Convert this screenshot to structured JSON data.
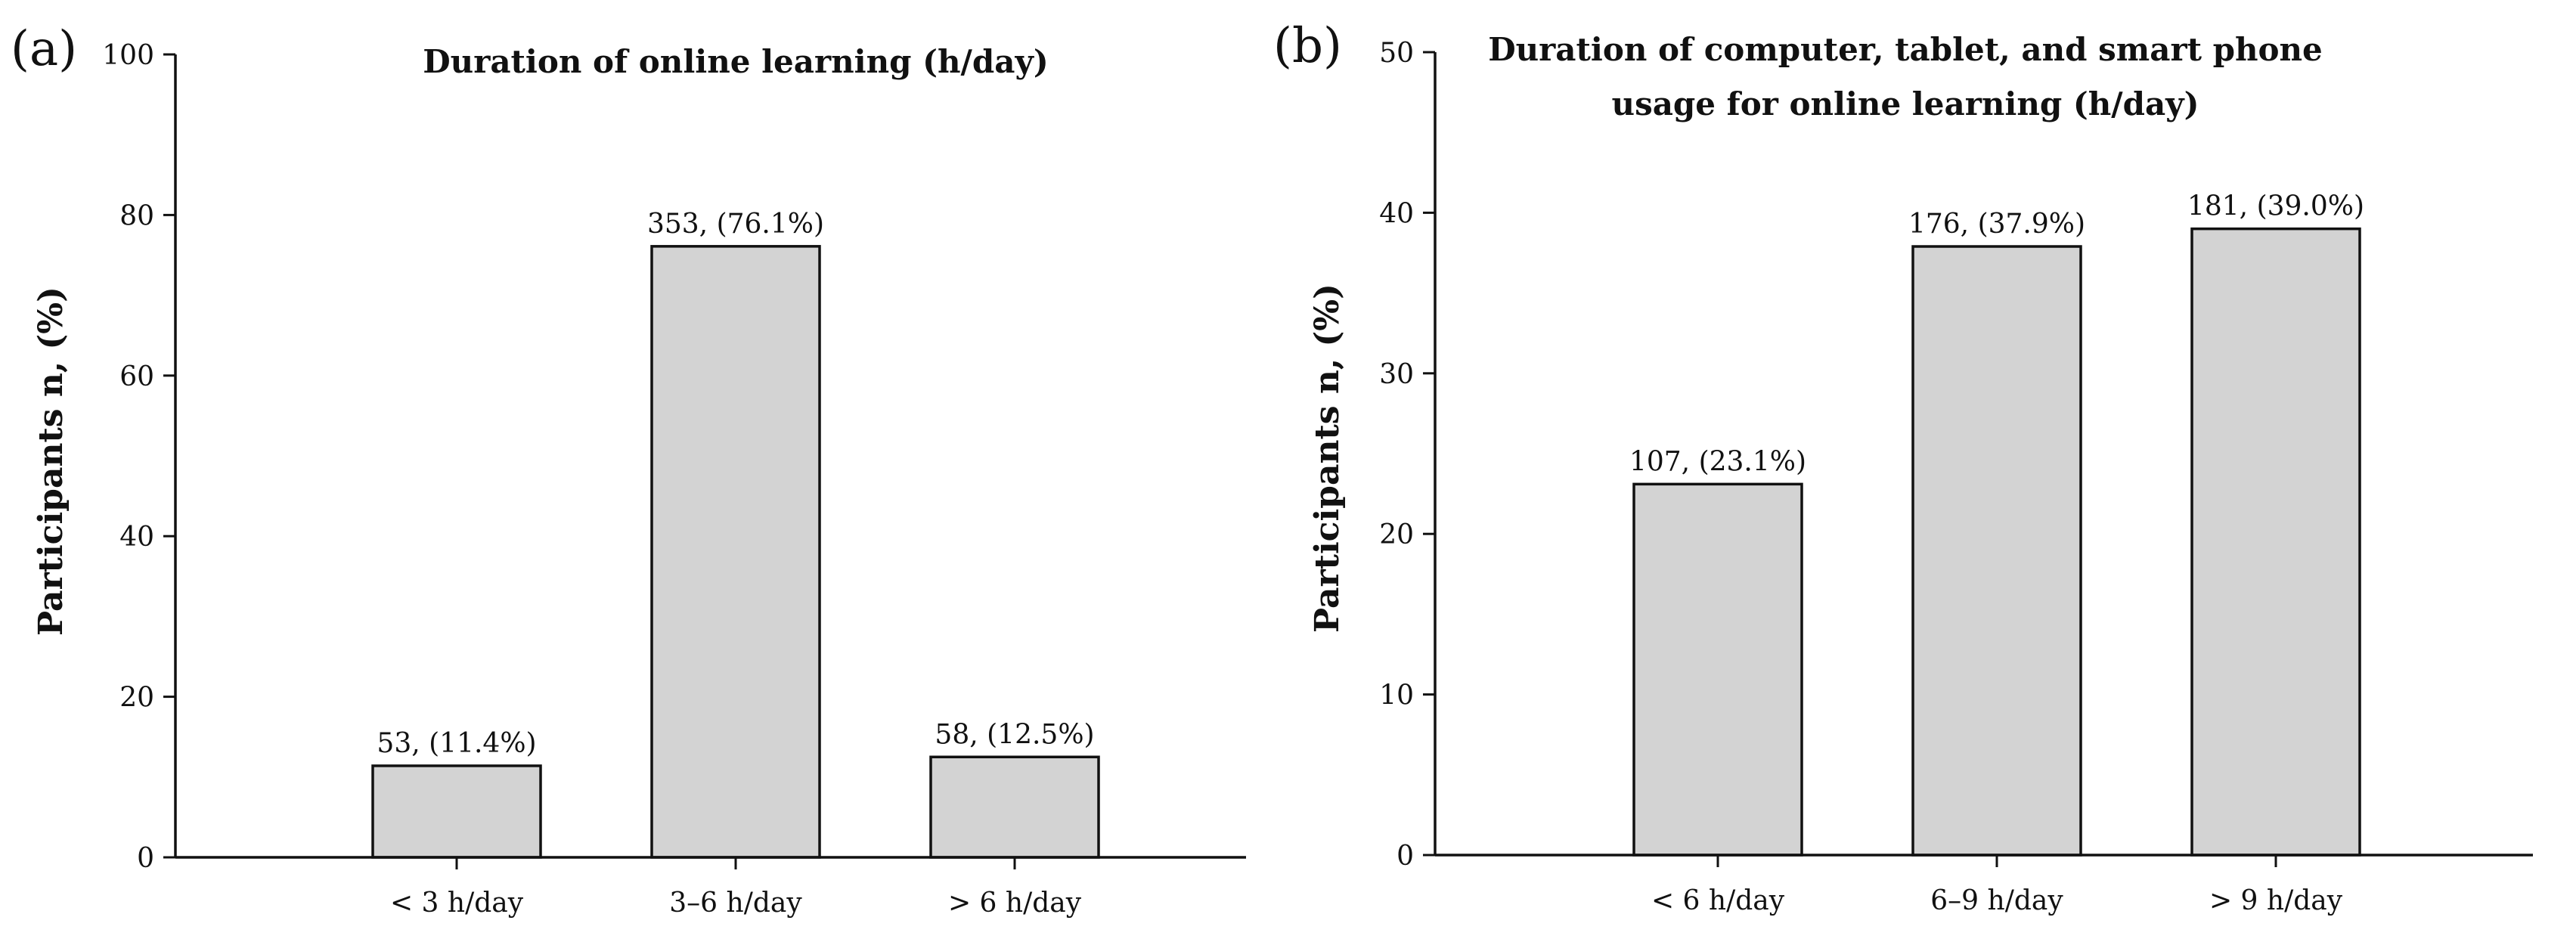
{
  "chart_data": [
    {
      "panel": "(a)",
      "type": "bar",
      "title": [
        "Duration of online learning (h/day)"
      ],
      "xlabel": "",
      "ylabel": "Participants n, (%)",
      "ylim": [
        0,
        100
      ],
      "yticks": [
        0,
        20,
        40,
        60,
        80,
        100
      ],
      "categories": [
        "< 3 h/day",
        "3–6 h/day",
        "> 6 h/day"
      ],
      "values": [
        11.4,
        76.1,
        12.5
      ],
      "data_labels": [
        "53, (11.4%)",
        "353, (76.1%)",
        "58, (12.5%)"
      ],
      "bar_color": "#d3d3d3",
      "grid": false
    },
    {
      "panel": "(b)",
      "type": "bar",
      "title": [
        "Duration of computer, tablet, and smart phone",
        "usage for online learning (h/day)"
      ],
      "xlabel": "",
      "ylabel": "Participants n, (%)",
      "ylim": [
        0,
        50
      ],
      "yticks": [
        0,
        10,
        20,
        30,
        40,
        50
      ],
      "categories": [
        "< 6 h/day",
        "6–9  h/day",
        "> 9 h/day"
      ],
      "values": [
        23.1,
        37.9,
        39.0
      ],
      "data_labels": [
        "107, (23.1%)",
        "176, (37.9%)",
        "181, (39.0%)"
      ],
      "bar_color": "#d3d3d3",
      "grid": false
    }
  ]
}
